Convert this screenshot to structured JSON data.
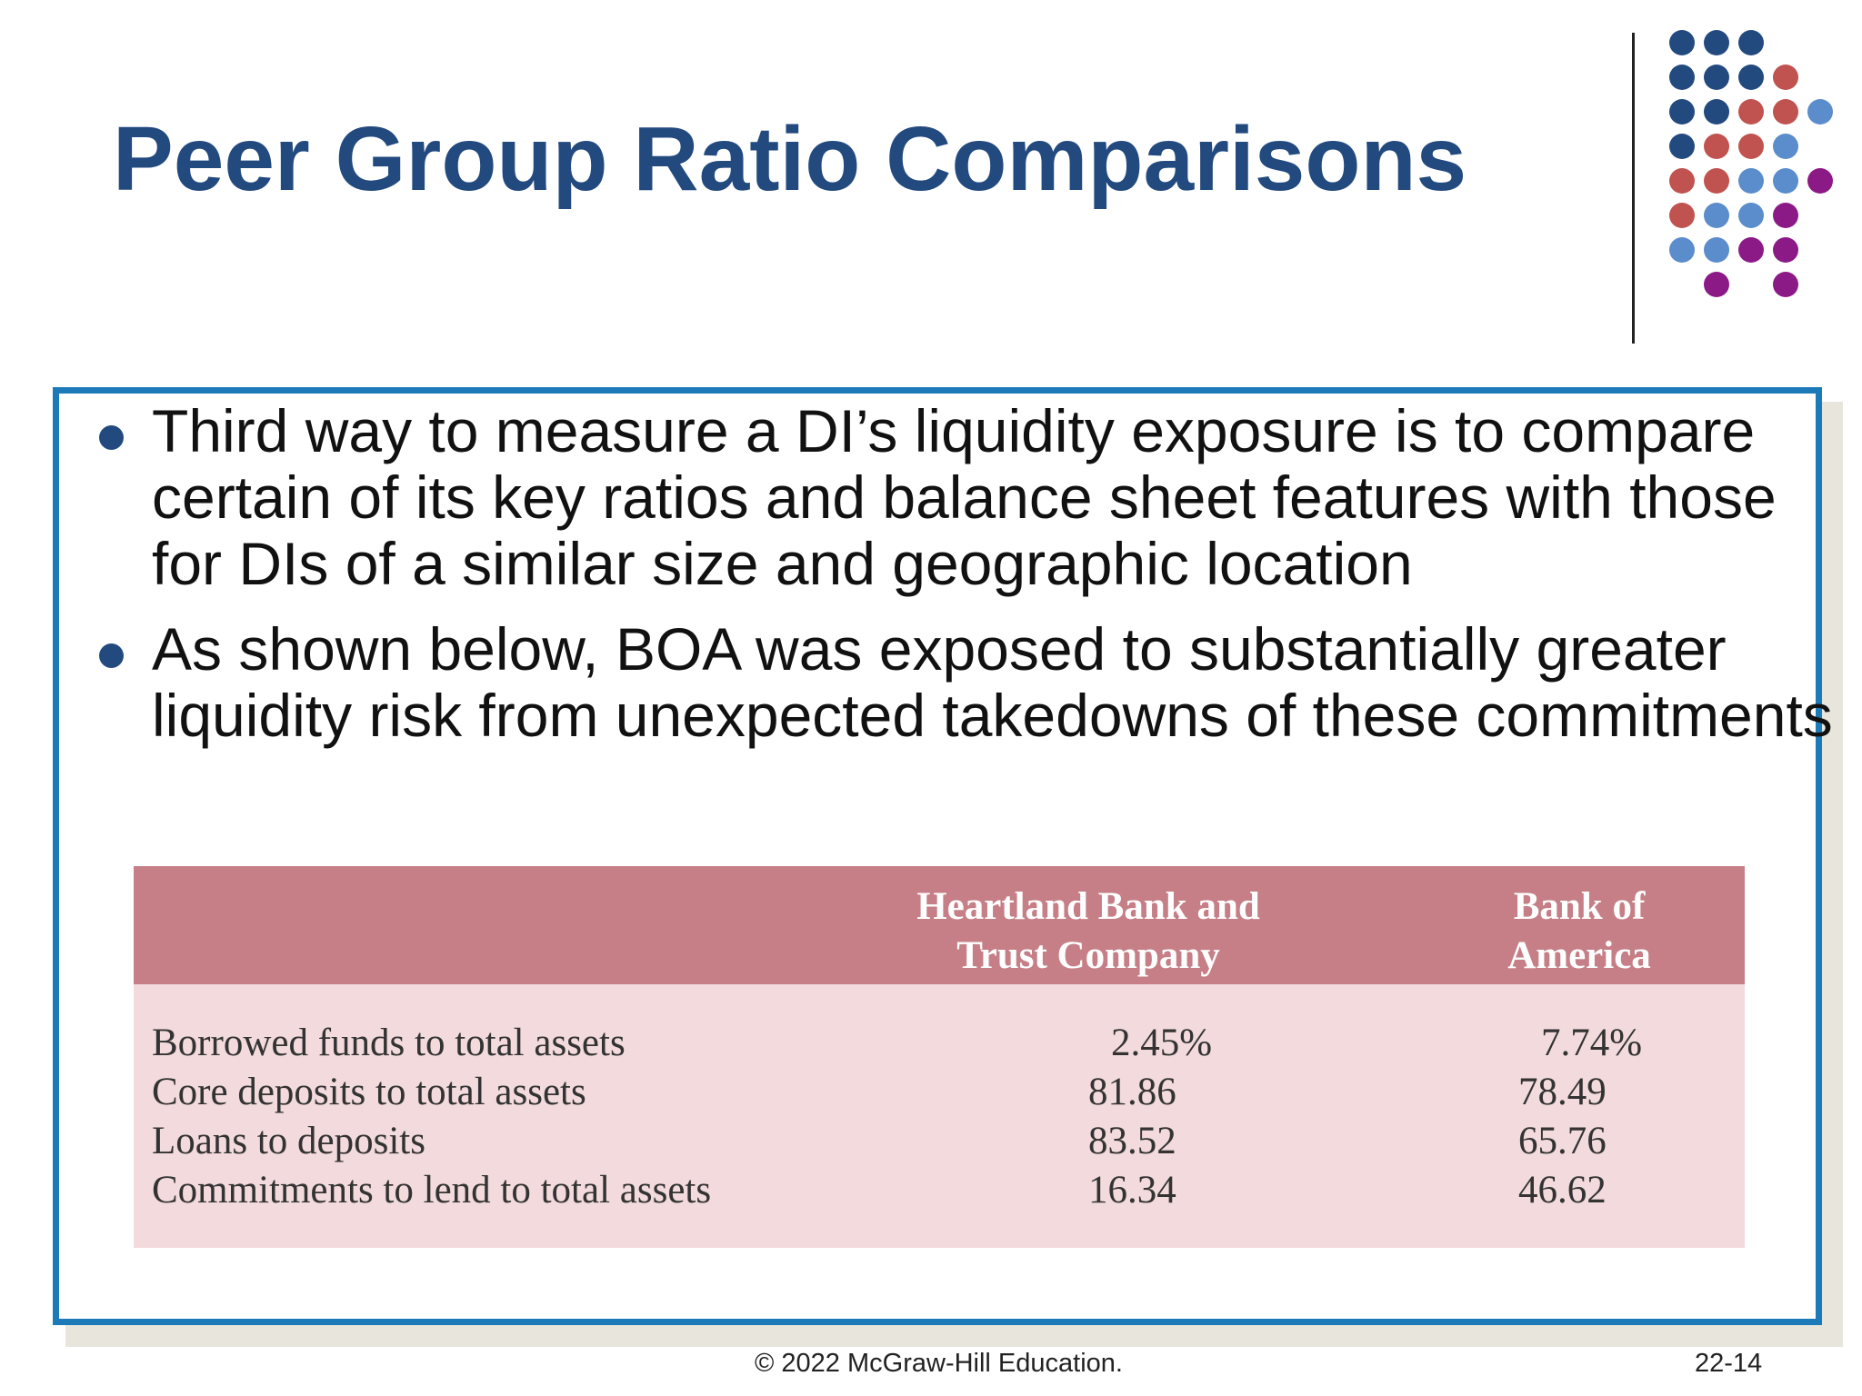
{
  "slide": {
    "title": "Peer Group Ratio Comparisons",
    "bullets": [
      "Third way to measure a DI’s liquidity exposure is to compare certain of its key ratios and balance sheet features with those for DIs of a similar size and geographic location",
      "As shown below, BOA was exposed to substantially greater liquidity risk from unexpected takedowns of these commitments"
    ],
    "table": {
      "headers": [
        "",
        "Heartland Bank and Trust Company",
        "Bank of America"
      ],
      "header_lines": {
        "col1": [
          "Heartland Bank and",
          "Trust Company"
        ],
        "col2": [
          "Bank of",
          "America"
        ]
      },
      "rows": [
        {
          "label": "Borrowed funds to total assets",
          "heartland": "2.45%",
          "boa": "7.74%"
        },
        {
          "label": "Core deposits to total assets",
          "heartland": "81.86",
          "boa": "78.49"
        },
        {
          "label": "Loans to deposits",
          "heartland": "83.52",
          "boa": "65.76"
        },
        {
          "label": "Commitments to lend to total assets",
          "heartland": "16.34",
          "boa": "46.62"
        }
      ]
    },
    "footer": {
      "copyright": "© 2022 McGraw-Hill Education.",
      "page_number": "22-14"
    },
    "colors": {
      "title": "#234a7f",
      "border": "#1d7ab8",
      "table_header": "#c67f86",
      "table_body": "#f2dadd",
      "dot_navy": "#234a7f",
      "dot_red": "#c0524f",
      "dot_blue": "#5b8ccb",
      "dot_purple": "#8b1a86"
    }
  }
}
